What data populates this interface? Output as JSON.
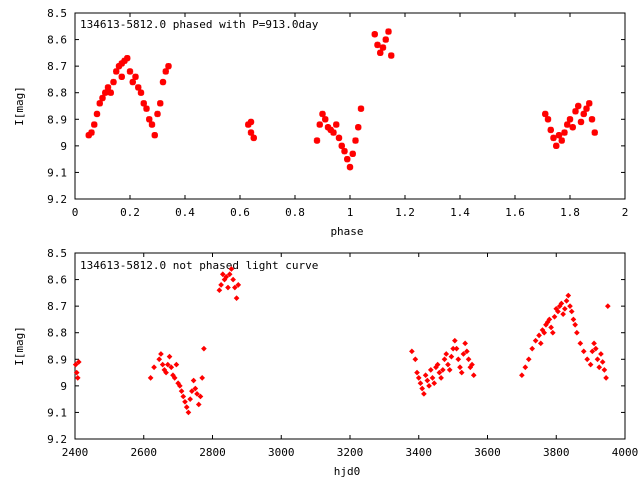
{
  "charts": [
    {
      "type": "scatter",
      "title": "134613-5812.0 phased with P=913.0day",
      "xlabel": "phase",
      "ylabel": "I[mag]",
      "xlim": [
        0,
        2
      ],
      "ylim": [
        8.5,
        9.2
      ],
      "y_inverted": true,
      "x_ticks": [
        "0",
        "0.2",
        "0.4",
        "0.6",
        "0.8",
        "1",
        "1.2",
        "1.4",
        "1.6",
        "1.8",
        "2"
      ],
      "x_tick_values": [
        0,
        0.2,
        0.4,
        0.6,
        0.8,
        1.0,
        1.2,
        1.4,
        1.6,
        1.8,
        2.0
      ],
      "y_ticks": [
        "8.5",
        "8.6",
        "8.7",
        "8.8",
        "8.9",
        "9",
        "9.1",
        "9.2"
      ],
      "y_tick_values": [
        8.5,
        8.6,
        8.7,
        8.8,
        8.9,
        9.0,
        9.1,
        9.2
      ],
      "marker": "star",
      "color": "#ff0000"
    },
    {
      "type": "scatter",
      "title": "134613-5812.0 not phased light curve",
      "xlabel": "hjd0",
      "ylabel": "I[mag]",
      "xlim": [
        2400,
        4000
      ],
      "ylim": [
        8.5,
        9.2
      ],
      "y_inverted": true,
      "x_ticks": [
        "2400",
        "2600",
        "2800",
        "3000",
        "3200",
        "3400",
        "3600",
        "3800",
        "4000"
      ],
      "x_tick_values": [
        2400,
        2600,
        2800,
        3000,
        3200,
        3400,
        3600,
        3800,
        4000
      ],
      "y_ticks": [
        "8.5",
        "8.6",
        "8.7",
        "8.8",
        "8.9",
        "9",
        "9.1",
        "9.2"
      ],
      "y_tick_values": [
        8.5,
        8.6,
        8.7,
        8.8,
        8.9,
        9.0,
        9.1,
        9.2
      ],
      "marker": "diamond",
      "color": "#ff0000"
    }
  ],
  "chart_data": [
    {
      "type": "scatter",
      "title": "134613-5812.0 phased with P=913.0day",
      "xlabel": "phase",
      "ylabel": "I[mag]",
      "xlim": [
        0,
        2
      ],
      "ylim": [
        9.2,
        8.5
      ],
      "series": [
        {
          "x": [
            0.05,
            0.06,
            0.07,
            0.08,
            0.09,
            0.1,
            0.11,
            0.12,
            0.13,
            0.14,
            0.15,
            0.16,
            0.17,
            0.17,
            0.18,
            0.19,
            0.2,
            0.21,
            0.22,
            0.23,
            0.24,
            0.25,
            0.26,
            0.27,
            0.28,
            0.29,
            0.3,
            0.31,
            0.32,
            0.33,
            0.34,
            0.63,
            0.64,
            0.65,
            0.64,
            0.88,
            0.89,
            0.9,
            0.91,
            0.92,
            0.93,
            0.94,
            0.95,
            0.96,
            0.97,
            0.98,
            0.99,
            1.0,
            1.01,
            1.02,
            1.03,
            1.04,
            1.09,
            1.1,
            1.11,
            1.12,
            1.13,
            1.14,
            1.15,
            1.71,
            1.72,
            1.73,
            1.74,
            1.75,
            1.76,
            1.77,
            1.78,
            1.79,
            1.8,
            1.81,
            1.82,
            1.83,
            1.84,
            1.85,
            1.86,
            1.87,
            1.88,
            1.89
          ],
          "y": [
            8.96,
            8.95,
            8.92,
            8.88,
            8.84,
            8.82,
            8.8,
            8.78,
            8.8,
            8.76,
            8.72,
            8.7,
            8.69,
            8.74,
            8.68,
            8.67,
            8.72,
            8.76,
            8.74,
            8.78,
            8.8,
            8.84,
            8.86,
            8.9,
            8.92,
            8.96,
            8.88,
            8.84,
            8.76,
            8.72,
            8.7,
            8.92,
            8.95,
            8.97,
            8.91,
            8.98,
            8.92,
            8.88,
            8.9,
            8.93,
            8.94,
            8.95,
            8.92,
            8.97,
            9.0,
            9.02,
            9.05,
            9.08,
            9.03,
            8.98,
            8.93,
            8.86,
            8.58,
            8.62,
            8.65,
            8.63,
            8.6,
            8.57,
            8.66,
            8.88,
            8.9,
            8.94,
            8.97,
            9.0,
            8.96,
            8.98,
            8.95,
            8.92,
            8.9,
            8.93,
            8.87,
            8.85,
            8.91,
            8.88,
            8.86,
            8.84,
            8.9,
            8.95
          ]
        }
      ]
    },
    {
      "type": "scatter",
      "title": "134613-5812.0 not phased light curve",
      "xlabel": "hjd0",
      "ylabel": "I[mag]",
      "xlim": [
        2400,
        4000
      ],
      "ylim": [
        9.2,
        8.5
      ],
      "series": [
        {
          "x": [
            2402,
            2405,
            2408,
            2411,
            2620,
            2630,
            2645,
            2650,
            2655,
            2660,
            2665,
            2670,
            2675,
            2680,
            2685,
            2690,
            2695,
            2700,
            2705,
            2710,
            2715,
            2720,
            2725,
            2730,
            2735,
            2740,
            2745,
            2750,
            2755,
            2760,
            2765,
            2770,
            2775,
            2820,
            2825,
            2830,
            2835,
            2840,
            2845,
            2850,
            2855,
            2860,
            2865,
            2870,
            2875,
            3380,
            3390,
            3395,
            3400,
            3405,
            3410,
            3415,
            3420,
            3425,
            3430,
            3435,
            3440,
            3445,
            3450,
            3455,
            3460,
            3465,
            3470,
            3475,
            3480,
            3485,
            3490,
            3495,
            3500,
            3505,
            3510,
            3515,
            3520,
            3525,
            3530,
            3535,
            3540,
            3545,
            3550,
            3555,
            3560,
            3700,
            3710,
            3720,
            3730,
            3740,
            3750,
            3755,
            3760,
            3765,
            3770,
            3775,
            3780,
            3785,
            3790,
            3795,
            3800,
            3805,
            3810,
            3815,
            3820,
            3825,
            3830,
            3835,
            3840,
            3845,
            3850,
            3855,
            3860,
            3870,
            3880,
            3890,
            3900,
            3905,
            3910,
            3915,
            3920,
            3925,
            3930,
            3935,
            3940,
            3945,
            3950
          ],
          "y": [
            8.92,
            8.95,
            8.97,
            8.91,
            8.97,
            8.93,
            8.9,
            8.88,
            8.92,
            8.94,
            8.95,
            8.92,
            8.89,
            8.93,
            8.96,
            8.97,
            8.92,
            8.99,
            9.0,
            9.02,
            9.04,
            9.06,
            9.08,
            9.1,
            9.05,
            9.02,
            8.98,
            9.01,
            9.03,
            9.07,
            9.04,
            8.97,
            8.86,
            8.64,
            8.62,
            8.58,
            8.6,
            8.59,
            8.63,
            8.58,
            8.56,
            8.6,
            8.63,
            8.67,
            8.62,
            8.87,
            8.9,
            8.95,
            8.97,
            8.99,
            9.01,
            9.03,
            8.96,
            8.98,
            9.0,
            8.94,
            8.97,
            8.99,
            8.93,
            8.92,
            8.95,
            8.97,
            8.94,
            8.9,
            8.88,
            8.92,
            8.94,
            8.89,
            8.86,
            8.83,
            8.86,
            8.9,
            8.93,
            8.95,
            8.88,
            8.84,
            8.87,
            8.9,
            8.93,
            8.92,
            8.96,
            8.96,
            8.93,
            8.9,
            8.86,
            8.83,
            8.81,
            8.84,
            8.79,
            8.8,
            8.77,
            8.76,
            8.75,
            8.78,
            8.8,
            8.74,
            8.71,
            8.72,
            8.7,
            8.69,
            8.73,
            8.71,
            8.68,
            8.66,
            8.7,
            8.72,
            8.75,
            8.77,
            8.8,
            8.84,
            8.87,
            8.9,
            8.92,
            8.87,
            8.84,
            8.86,
            8.9,
            8.93,
            8.88,
            8.91,
            8.94,
            8.97,
            8.7
          ]
        }
      ]
    }
  ]
}
